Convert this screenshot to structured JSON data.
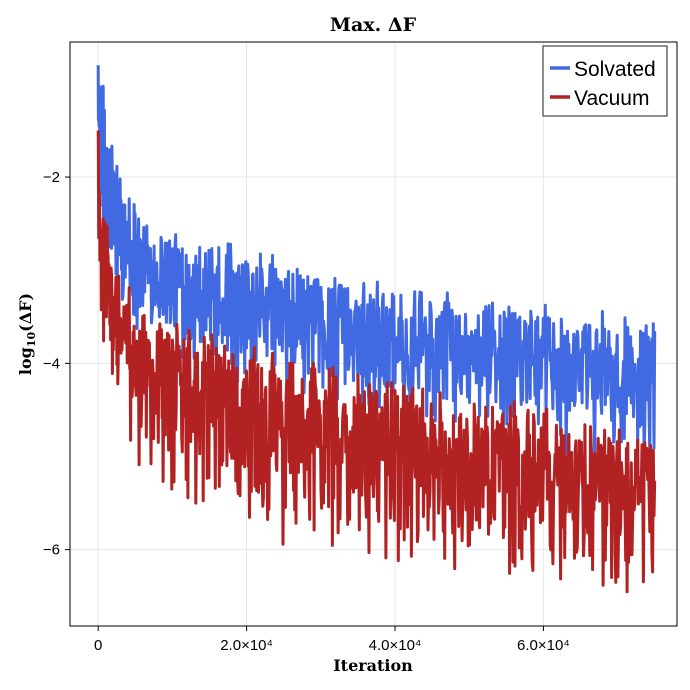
{
  "chart_data": {
    "type": "line",
    "title": "Max. ΔF",
    "xlabel": "Iteration",
    "ylabel_base": "log",
    "ylabel_sub": "10",
    "ylabel_rest": "(ΔF)",
    "xlim": [
      -3800,
      78000
    ],
    "ylim": [
      -6.82,
      -0.55
    ],
    "x_ticks": [
      {
        "value": 0,
        "label": "0"
      },
      {
        "value": 20000,
        "label": "2.0×10⁴"
      },
      {
        "value": 40000,
        "label": "4.0×10⁴"
      },
      {
        "value": 60000,
        "label": "6.0×10⁴"
      }
    ],
    "y_ticks": [
      {
        "value": -2,
        "label": "−2"
      },
      {
        "value": -4,
        "label": "−4"
      },
      {
        "value": -6,
        "label": "−6"
      }
    ],
    "grid": true,
    "legend_position": "top-right",
    "series": [
      {
        "name": "Solvated",
        "color": "#4169E1",
        "x_range": [
          0,
          75000
        ],
        "start": -0.8,
        "upper_envelope": [
          [
            0,
            -0.8
          ],
          [
            300,
            -0.95
          ],
          [
            1500,
            -1.6
          ],
          [
            3000,
            -2.15
          ],
          [
            5000,
            -2.45
          ],
          [
            10000,
            -2.6
          ],
          [
            20000,
            -2.9
          ],
          [
            30000,
            -3.1
          ],
          [
            40000,
            -3.25
          ],
          [
            50000,
            -3.4
          ],
          [
            60000,
            -3.5
          ],
          [
            70000,
            -3.6
          ],
          [
            75000,
            -3.7
          ]
        ],
        "lower_envelope": [
          [
            0,
            -1.3
          ],
          [
            500,
            -2.6
          ],
          [
            2000,
            -3.2
          ],
          [
            5000,
            -3.5
          ],
          [
            10000,
            -3.7
          ],
          [
            20000,
            -4.0
          ],
          [
            30000,
            -4.15
          ],
          [
            40000,
            -4.3
          ],
          [
            50000,
            -4.45
          ],
          [
            60000,
            -4.6
          ],
          [
            70000,
            -4.65
          ],
          [
            75000,
            -4.7
          ]
        ]
      },
      {
        "name": "Vacuum",
        "color": "#B22222",
        "x_range": [
          0,
          75000
        ],
        "start": -1.5,
        "upper_envelope": [
          [
            0,
            -1.5
          ],
          [
            400,
            -2.3
          ],
          [
            1500,
            -2.8
          ],
          [
            3000,
            -3.2
          ],
          [
            5000,
            -3.4
          ],
          [
            10000,
            -3.7
          ],
          [
            20000,
            -3.95
          ],
          [
            30000,
            -4.15
          ],
          [
            40000,
            -4.35
          ],
          [
            50000,
            -4.5
          ],
          [
            60000,
            -4.6
          ],
          [
            70000,
            -4.75
          ],
          [
            75000,
            -4.8
          ]
        ],
        "lower_envelope": [
          [
            0,
            -2.3
          ],
          [
            500,
            -3.4
          ],
          [
            2000,
            -4.2
          ],
          [
            5000,
            -4.7
          ],
          [
            10000,
            -5.1
          ],
          [
            20000,
            -5.5
          ],
          [
            30000,
            -5.7
          ],
          [
            40000,
            -5.8
          ],
          [
            50000,
            -5.9
          ],
          [
            60000,
            -6.0
          ],
          [
            70000,
            -6.15
          ],
          [
            75000,
            -6.1
          ]
        ]
      }
    ]
  }
}
